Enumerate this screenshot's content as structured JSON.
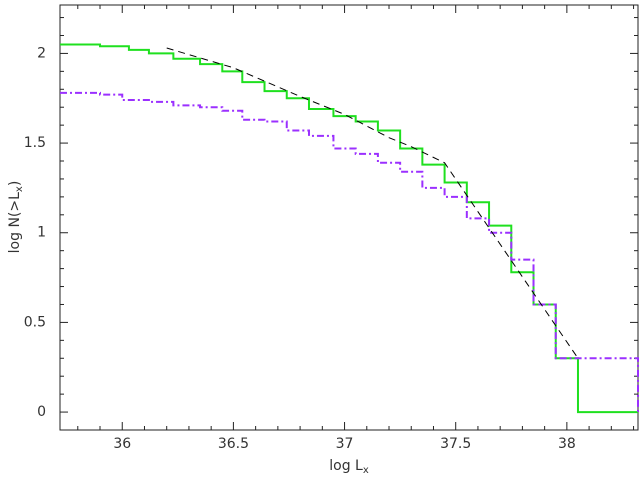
{
  "chart_data": {
    "type": "step",
    "xlabel": {
      "text": "log L",
      "sub": "x"
    },
    "ylabel": {
      "text": "log N(>L",
      "sub": "x",
      "suffix": ")"
    },
    "xlim": [
      35.72,
      38.32
    ],
    "ylim": [
      -0.1,
      2.27
    ],
    "xticks": [
      36,
      36.5,
      37,
      37.5,
      38
    ],
    "yticks": [
      0,
      0.5,
      1,
      1.5,
      2
    ],
    "xminorticks": [
      35.8,
      35.9,
      36.1,
      36.2,
      36.3,
      36.4,
      36.6,
      36.7,
      36.8,
      36.9,
      37.1,
      37.2,
      37.3,
      37.4,
      37.6,
      37.7,
      37.8,
      37.9,
      38.1,
      38.2,
      38.3
    ],
    "yminorticks": [
      0.1,
      0.2,
      0.3,
      0.4,
      0.6,
      0.7,
      0.8,
      0.9,
      1.1,
      1.2,
      1.3,
      1.4,
      1.6,
      1.7,
      1.8,
      1.9,
      2.1,
      2.2
    ],
    "series": [
      {
        "color": "#1fe01f",
        "dash": "solid",
        "step": true,
        "x": [
          35.72,
          35.9,
          36.03,
          36.12,
          36.23,
          36.35,
          36.45,
          36.54,
          36.64,
          36.74,
          36.84,
          36.95,
          37.05,
          37.15,
          37.25,
          37.35,
          37.45,
          37.55,
          37.65,
          37.75,
          37.85,
          37.95,
          38.05,
          38.32
        ],
        "values": [
          2.05,
          2.04,
          2.02,
          2.0,
          1.97,
          1.94,
          1.9,
          1.84,
          1.79,
          1.75,
          1.69,
          1.65,
          1.62,
          1.57,
          1.47,
          1.38,
          1.28,
          1.17,
          1.04,
          0.78,
          0.6,
          0.3,
          0,
          0
        ]
      },
      {
        "color": "#9b30ff",
        "dash": "dashdot",
        "step": true,
        "x": [
          35.72,
          35.9,
          36.0,
          36.12,
          36.23,
          36.35,
          36.45,
          36.54,
          36.64,
          36.74,
          36.84,
          36.95,
          37.05,
          37.15,
          37.25,
          37.35,
          37.45,
          37.55,
          37.65,
          37.75,
          37.85,
          37.95,
          38.32
        ],
        "values": [
          1.78,
          1.77,
          1.74,
          1.73,
          1.71,
          1.7,
          1.68,
          1.63,
          1.62,
          1.57,
          1.54,
          1.47,
          1.44,
          1.39,
          1.34,
          1.25,
          1.2,
          1.08,
          1.0,
          0.85,
          0.6,
          0.3,
          0
        ]
      },
      {
        "color": "#000000",
        "dash": "dashed",
        "step": false,
        "x": [
          36.2,
          36.5,
          36.8,
          37.0,
          37.2,
          37.3,
          37.45,
          38.05
        ],
        "values": [
          2.03,
          1.92,
          1.76,
          1.66,
          1.53,
          1.48,
          1.39,
          0.3
        ]
      }
    ]
  }
}
